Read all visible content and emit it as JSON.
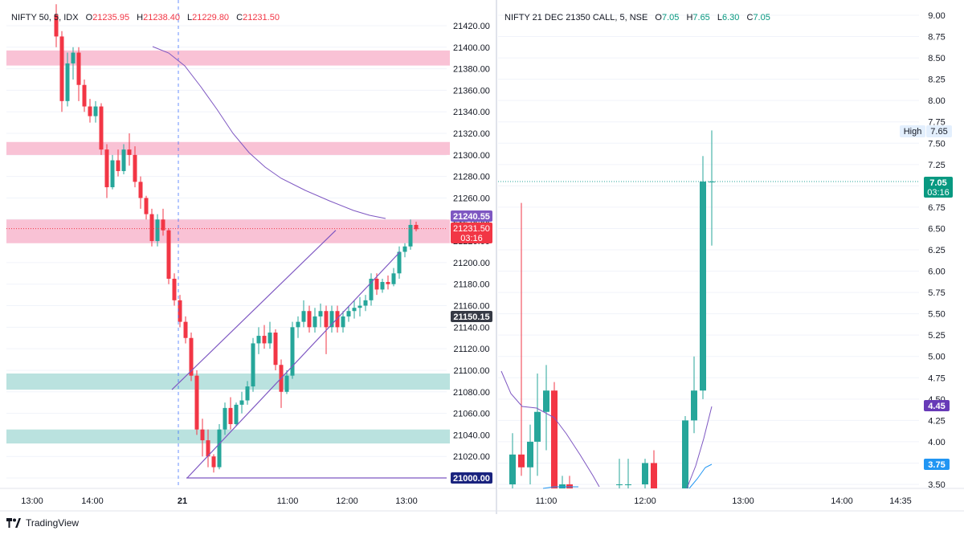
{
  "colors": {
    "up": "#26a69a",
    "down": "#f23645",
    "channel": "#7e57c2",
    "ma": "#7e57c2",
    "supply": "#f8bbd0",
    "demand": "#b2dfdb",
    "grid": "#f0f3fa",
    "axisText": "#131722",
    "teal_secondary": "#2196f3"
  },
  "left_panel": {
    "legend": {
      "symbol": "NIFTY 50, 5, IDX",
      "o_label": "O",
      "o": "21235.95",
      "h_label": "H",
      "h": "21238.40",
      "l_label": "L",
      "l": "21229.80",
      "c_label": "C",
      "c": "21231.50"
    },
    "price_labels": {
      "ma": "21240.55",
      "last": "21231.50",
      "countdown": "03:16",
      "level_1": "21150.15",
      "level_2": "21000.00"
    },
    "time_labels": [
      "13:00",
      "14:00",
      "21",
      "11:00",
      "12:00",
      "13:00"
    ]
  },
  "right_panel": {
    "legend": {
      "symbol": "NIFTY 21 DEC 21350 CALL, 5, NSE",
      "o_label": "O",
      "o": "7.05",
      "h_label": "H",
      "h": "7.65",
      "l_label": "L",
      "l": "6.30",
      "c_label": "C",
      "c": "7.05"
    },
    "price_labels": {
      "high_tag": "High",
      "high": "7.65",
      "last": "7.05",
      "countdown": "03:16",
      "ma_1": "4.45",
      "ma_2": "3.75"
    },
    "time_labels": [
      "11:00",
      "12:00",
      "13:00",
      "14:00",
      "14:35"
    ]
  },
  "chart_data": [
    {
      "type": "candlestick",
      "title": "NIFTY 50, 5, IDX",
      "ylim": [
        20990,
        21440
      ],
      "y_ticks": [
        21000,
        21020,
        21040,
        21060,
        21080,
        21100,
        21120,
        21140,
        21160,
        21180,
        21200,
        21220,
        21240,
        21260,
        21280,
        21300,
        21320,
        21340,
        21360,
        21380,
        21400,
        21420
      ],
      "zones": [
        {
          "kind": "supply",
          "from": 21383,
          "to": 21397
        },
        {
          "kind": "supply",
          "from": 21300,
          "to": 21312
        },
        {
          "kind": "supply",
          "from": 21218,
          "to": 21240
        },
        {
          "kind": "demand",
          "from": 21082,
          "to": 21097
        },
        {
          "kind": "demand",
          "from": 21032,
          "to": 21045
        }
      ],
      "horizontal_line": 21000.0,
      "candles": [
        [
          21430,
          21440,
          21400,
          21410
        ],
        [
          21410,
          21415,
          21340,
          21350
        ],
        [
          21350,
          21395,
          21345,
          21385
        ],
        [
          21385,
          21400,
          21370,
          21395
        ],
        [
          21395,
          21400,
          21350,
          21365
        ],
        [
          21365,
          21370,
          21340,
          21345
        ],
        [
          21345,
          21352,
          21330,
          21336
        ],
        [
          21336,
          21350,
          21330,
          21345
        ],
        [
          21345,
          21348,
          21300,
          21305
        ],
        [
          21305,
          21310,
          21260,
          21270
        ],
        [
          21270,
          21300,
          21268,
          21295
        ],
        [
          21295,
          21305,
          21280,
          21285
        ],
        [
          21285,
          21310,
          21282,
          21305
        ],
        [
          21305,
          21320,
          21290,
          21300
        ],
        [
          21300,
          21308,
          21270,
          21275
        ],
        [
          21275,
          21280,
          21250,
          21260
        ],
        [
          21260,
          21262,
          21240,
          21245
        ],
        [
          21245,
          21250,
          21215,
          21220
        ],
        [
          21220,
          21245,
          21215,
          21240
        ],
        [
          21240,
          21250,
          21225,
          21230
        ],
        [
          21230,
          21232,
          21180,
          21185
        ],
        [
          21185,
          21190,
          21160,
          21165
        ],
        [
          21165,
          21170,
          21140,
          21145
        ],
        [
          21145,
          21150,
          21125,
          21130
        ],
        [
          21130,
          21135,
          21090,
          21095
        ],
        [
          21095,
          21100,
          21040,
          21045
        ],
        [
          21045,
          21055,
          21020,
          21035
        ],
        [
          21035,
          21045,
          21010,
          21020
        ],
        [
          21020,
          21022,
          21005,
          21010
        ],
        [
          21010,
          21050,
          21008,
          21045
        ],
        [
          21045,
          21070,
          21040,
          21065
        ],
        [
          21065,
          21075,
          21045,
          21050
        ],
        [
          21050,
          21070,
          21048,
          21068
        ],
        [
          21068,
          21080,
          21060,
          21072
        ],
        [
          21072,
          21090,
          21068,
          21085
        ],
        [
          21085,
          21130,
          21080,
          21125
        ],
        [
          21125,
          21140,
          21115,
          21132
        ],
        [
          21132,
          21142,
          21120,
          21125
        ],
        [
          21125,
          21145,
          21120,
          21135
        ],
        [
          21135,
          21138,
          21100,
          21105
        ],
        [
          21105,
          21110,
          21065,
          21080
        ],
        [
          21080,
          21100,
          21078,
          21095
        ],
        [
          21095,
          21145,
          21092,
          21140
        ],
        [
          21140,
          21150,
          21130,
          21145
        ],
        [
          21145,
          21165,
          21140,
          21155
        ],
        [
          21155,
          21160,
          21135,
          21140
        ],
        [
          21140,
          21158,
          21135,
          21150
        ],
        [
          21150,
          21162,
          21140,
          21155
        ],
        [
          21155,
          21160,
          21115,
          21140
        ],
        [
          21140,
          21160,
          21135,
          21155
        ],
        [
          21155,
          21160,
          21135,
          21140
        ],
        [
          21140,
          21155,
          21135,
          21150
        ],
        [
          21150,
          21160,
          21145,
          21155
        ],
        [
          21155,
          21165,
          21148,
          21158
        ],
        [
          21158,
          21168,
          21150,
          21160
        ],
        [
          21160,
          21170,
          21155,
          21165
        ],
        [
          21165,
          21190,
          21160,
          21185
        ],
        [
          21185,
          21190,
          21170,
          21175
        ],
        [
          21175,
          21185,
          21172,
          21182
        ],
        [
          21182,
          21188,
          21175,
          21180
        ],
        [
          21180,
          21195,
          21178,
          21190
        ],
        [
          21190,
          21215,
          21185,
          21210
        ],
        [
          21210,
          21218,
          21205,
          21215
        ],
        [
          21215,
          21240,
          21212,
          21235
        ],
        [
          21235,
          21238,
          21229,
          21231
        ]
      ],
      "channel": {
        "upper": [
          [
            9,
            21082
          ],
          [
            57,
            21230
          ]
        ],
        "lower": [
          [
            10,
            21000
          ],
          [
            65,
            21210
          ]
        ]
      }
    },
    {
      "type": "candlestick",
      "title": "NIFTY 21 DEC 21350 CALL, 5, NSE",
      "ylim": [
        3.4,
        9.1
      ],
      "y_ticks": [
        3.5,
        3.75,
        4.0,
        4.25,
        4.5,
        4.75,
        5.0,
        5.25,
        5.5,
        5.75,
        6.0,
        6.25,
        6.5,
        6.75,
        7.0,
        7.25,
        7.5,
        7.75,
        8.0,
        8.25,
        8.5,
        8.75,
        9.0
      ],
      "candles": [
        [
          3.5,
          4.1,
          3.3,
          3.85
        ],
        [
          3.85,
          6.8,
          3.6,
          3.7
        ],
        [
          3.7,
          4.2,
          3.5,
          4.0
        ],
        [
          4.0,
          4.8,
          3.6,
          4.35
        ],
        [
          4.35,
          4.9,
          3.9,
          4.6
        ],
        [
          4.6,
          4.7,
          3.4,
          3.4
        ],
        [
          3.45,
          3.6,
          3.3,
          3.5
        ],
        [
          3.5,
          3.6,
          3.4,
          3.45
        ],
        [
          3.5,
          3.8,
          3.3,
          3.5
        ],
        [
          3.5,
          3.8,
          3.4,
          3.5
        ],
        [
          3.5,
          3.8,
          3.3,
          3.75
        ],
        [
          3.75,
          3.9,
          3.2,
          3.3
        ],
        [
          3.3,
          4.3,
          3.2,
          4.25
        ],
        [
          4.25,
          5.0,
          4.1,
          4.6
        ],
        [
          4.6,
          7.35,
          4.5,
          7.05
        ],
        [
          7.05,
          7.65,
          6.3,
          7.05
        ]
      ],
      "ma_1": {
        "name": "",
        "points": [
          [
            0,
            4.8
          ],
          [
            2,
            4.4
          ],
          [
            4,
            4.3
          ],
          [
            5,
            3.9
          ],
          [
            6,
            3.7
          ],
          [
            7,
            3.5
          ]
        ]
      },
      "ma_2": {
        "name": "",
        "points": [
          [
            13,
            3.5
          ],
          [
            14,
            4.2
          ],
          [
            15,
            4.45
          ]
        ]
      }
    }
  ]
}
